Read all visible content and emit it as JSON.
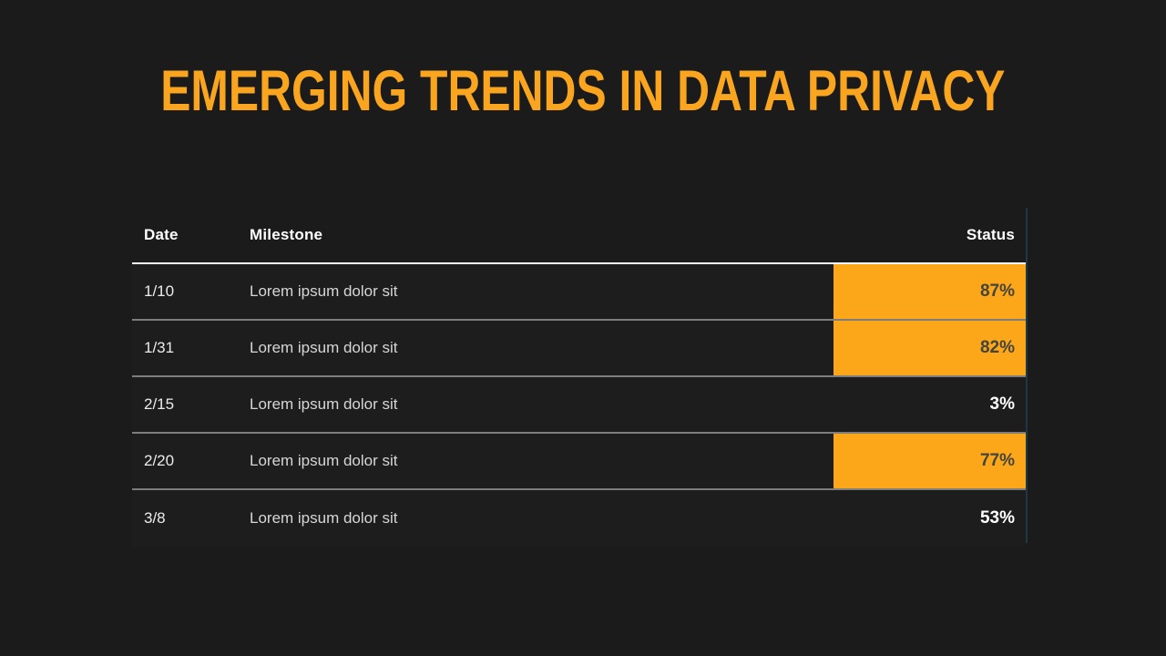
{
  "colors": {
    "background": "#1b1b1b",
    "row-bg": "#1e1d1d",
    "accent": "#F9A51F",
    "cell-orange": "#FCA61A",
    "status-dark-text": "#44443E",
    "separator": "#7d7d7d",
    "header-line": "#ffffff",
    "right-guide-line": "#1d3a43",
    "header-text": "#ffffff",
    "date-text": "#ececec",
    "milestone-text": "#d6d6d6",
    "status-light-text": "#ffffff"
  },
  "title": "EMERGING TRENDS IN DATA PRIVACY",
  "table": {
    "columns": [
      {
        "label": "Date"
      },
      {
        "label": "Milestone"
      },
      {
        "label": "Status"
      }
    ],
    "rows": [
      {
        "date": "1/10",
        "milestone": "Lorem ipsum dolor sit",
        "status": "87%",
        "highlighted": true
      },
      {
        "date": "1/31",
        "milestone": "Lorem ipsum dolor sit",
        "status": "82%",
        "highlighted": true
      },
      {
        "date": "2/15",
        "milestone": "Lorem ipsum dolor sit",
        "status": "3%",
        "highlighted": false
      },
      {
        "date": "2/20",
        "milestone": "Lorem ipsum dolor sit",
        "status": "77%",
        "highlighted": true
      },
      {
        "date": "3/8",
        "milestone": "Lorem ipsum dolor sit",
        "status": "53%",
        "highlighted": false
      }
    ]
  }
}
